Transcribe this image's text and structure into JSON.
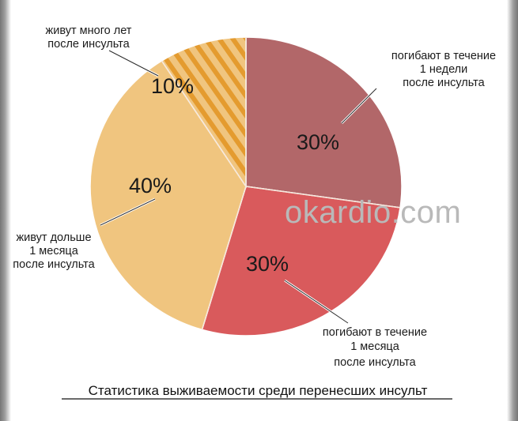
{
  "colors": {
    "dark_red": "#b26769",
    "red": "#d95a5c",
    "light_orange": "#f0c57f",
    "stripe": "#e49b2f",
    "edge": "#ffffff"
  },
  "watermark": "okardio.com",
  "chart_data": {
    "type": "pie",
    "title": "Статистика выживаемости среди перенесших инсульт",
    "slices": [
      {
        "label_lines": [
          "погибают в течение",
          "1 недели",
          "после инсульта"
        ],
        "value": 30,
        "value_label": "30%"
      },
      {
        "label_lines": [
          "погибают в течение",
          "1 месяца",
          "после инсульта"
        ],
        "value": 30,
        "value_label": "30%"
      },
      {
        "label_lines": [
          "живут дольше",
          "1 месяца",
          "после инсульта"
        ],
        "value": 40,
        "value_label": "40%"
      },
      {
        "label_lines": [
          "живут много лет",
          "после инсульта"
        ],
        "value": 10,
        "value_label": "10%"
      }
    ]
  }
}
